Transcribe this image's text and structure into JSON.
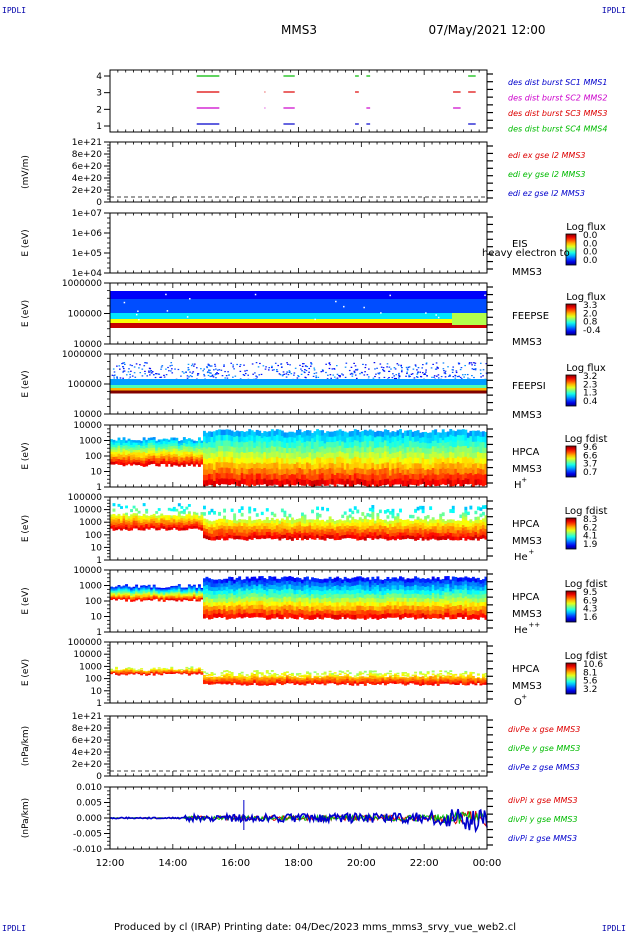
{
  "header": {
    "corner_tl": "IPDLI",
    "corner_tr": "IPDLI",
    "corner_bl": "IPDLI",
    "corner_br": "IPDLI",
    "mission": "MMS3",
    "datetime": "07/May/2021 12:00"
  },
  "footer": {
    "text": "Produced by cl (IRAP)   Printing date: 04/Dec/2023   mms_mms3_srvy_vue_web2.cl"
  },
  "colors": {
    "red": "#dd0000",
    "green": "#00bb00",
    "blue": "#0000cc",
    "magenta": "#cc00cc"
  },
  "chart_data": {
    "type": "heatmap",
    "x_ticks": [
      "12:00",
      "14:00",
      "16:00",
      "18:00",
      "20:00",
      "22:00",
      "00:00"
    ],
    "panels": [
      {
        "id": "burst",
        "kind": "burst",
        "ylabel": "",
        "y_ticks": [
          "4",
          "3",
          "2",
          "1"
        ],
        "legend": [
          {
            "text": "des dist burst SC1 MMS1",
            "color": "#0000cc"
          },
          {
            "text": "des dist burst SC2 MMS2",
            "color": "#cc00cc"
          },
          {
            "text": "des dist burst SC3 MMS3",
            "color": "#dd0000"
          },
          {
            "text": "des dist burst SC4 MMS4",
            "color": "#00bb00"
          }
        ]
      },
      {
        "id": "edi",
        "kind": "line_empty",
        "ylabel": "(mV/m)",
        "y_ticks": [
          "1e+21",
          "8e+20",
          "6e+20",
          "4e+20",
          "2e+20",
          "0"
        ],
        "legend": [
          {
            "text": "edi ex gse l2 MMS3",
            "color": "#dd0000"
          },
          {
            "text": "edi ey gse l2 MMS3",
            "color": "#00bb00"
          },
          {
            "text": "edi ez gse l2 MMS3",
            "color": "#0000cc"
          }
        ]
      },
      {
        "id": "eis",
        "kind": "spectro_empty",
        "ylabel": "E (eV)",
        "y_ticks": [
          "1e+07",
          "1e+06",
          "1e+05",
          "1e+04"
        ],
        "side": [
          "EIS",
          "MMS3"
        ],
        "overlay": "heavy electron to",
        "cbar_title": "Log flux",
        "cbar_ticks": [
          "0.0",
          "0.0",
          "0.0",
          "0.0"
        ]
      },
      {
        "id": "feepse",
        "kind": "spectro_feeps_e",
        "ylabel": "E (eV)",
        "y_ticks": [
          "1000000",
          "100000",
          "10000"
        ],
        "side": [
          "FEEPSE",
          "MMS3"
        ],
        "cbar_title": "Log flux",
        "cbar_ticks": [
          "3.3",
          "2.0",
          "0.8",
          "-0.4"
        ]
      },
      {
        "id": "feepsi",
        "kind": "spectro_feeps_i",
        "ylabel": "E (eV)",
        "y_ticks": [
          "1000000",
          "100000",
          "10000"
        ],
        "side": [
          "FEEPSI",
          "MMS3"
        ],
        "cbar_title": "Log flux",
        "cbar_ticks": [
          "3.2",
          "2.3",
          "1.3",
          "0.4"
        ]
      },
      {
        "id": "hpca_h",
        "kind": "spectro_hpca_h",
        "ylabel": "E (eV)",
        "y_ticks": [
          "10000",
          "1000",
          "100",
          "10",
          "1"
        ],
        "side": [
          "HPCA",
          "MMS3"
        ],
        "species": "H",
        "species_sup": "+",
        "cbar_title": "Log fdist",
        "cbar_ticks": [
          "9.6",
          "6.6",
          "3.7",
          "0.7"
        ]
      },
      {
        "id": "hpca_he1",
        "kind": "spectro_hpca_he1",
        "ylabel": "E (eV)",
        "y_ticks": [
          "100000",
          "10000",
          "1000",
          "100",
          "10",
          "1"
        ],
        "side": [
          "HPCA",
          "MMS3"
        ],
        "species": "He",
        "species_sup": "+",
        "cbar_title": "Log fdist",
        "cbar_ticks": [
          "8.3",
          "6.2",
          "4.1",
          "1.9"
        ]
      },
      {
        "id": "hpca_he2",
        "kind": "spectro_hpca_he2",
        "ylabel": "E (eV)",
        "y_ticks": [
          "10000",
          "1000",
          "100",
          "10",
          "1"
        ],
        "side": [
          "HPCA",
          "MMS3"
        ],
        "species": "He",
        "species_sup": "++",
        "cbar_title": "Log fdist",
        "cbar_ticks": [
          "9.5",
          "6.9",
          "4.3",
          "1.6"
        ]
      },
      {
        "id": "hpca_o",
        "kind": "spectro_hpca_o",
        "ylabel": "E (eV)",
        "y_ticks": [
          "100000",
          "10000",
          "1000",
          "100",
          "10",
          "1"
        ],
        "side": [
          "HPCA",
          "MMS3"
        ],
        "species": "O",
        "species_sup": "+",
        "cbar_title": "Log fdist",
        "cbar_ticks": [
          "10.6",
          "8.1",
          "5.6",
          "3.2"
        ]
      },
      {
        "id": "divpe",
        "kind": "line_empty",
        "ylabel": "(nPa/km)",
        "y_ticks": [
          "1e+21",
          "8e+20",
          "6e+20",
          "4e+20",
          "2e+20",
          "0"
        ],
        "legend": [
          {
            "text": "divPe x gse MMS3",
            "color": "#dd0000"
          },
          {
            "text": "divPe y gse MMS3",
            "color": "#00bb00"
          },
          {
            "text": "divPe z gse MMS3",
            "color": "#0000cc"
          }
        ]
      },
      {
        "id": "divpi",
        "kind": "line_divpi",
        "ylabel": "(nPa/km)",
        "y_ticks": [
          "0.010",
          "0.005",
          "0.000",
          "-0.005",
          "-0.010"
        ],
        "legend": [
          {
            "text": "divPi x gse MMS3",
            "color": "#dd0000"
          },
          {
            "text": "divPi y gse MMS3",
            "color": "#00bb00"
          },
          {
            "text": "divPi z gse MMS3",
            "color": "#0000cc"
          }
        ]
      }
    ]
  }
}
